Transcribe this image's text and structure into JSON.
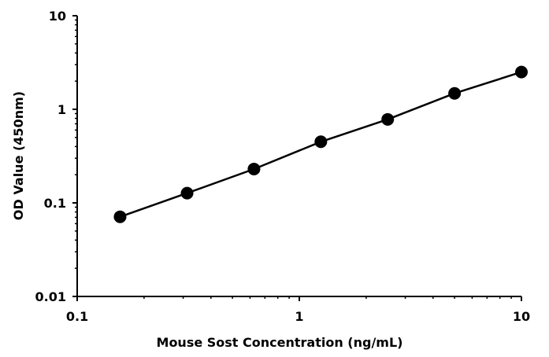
{
  "chart_data": {
    "type": "scatter",
    "title": "",
    "xlabel": "Mouse Sost Concentration (ng/mL)",
    "ylabel": "OD Value (450nm)",
    "x_scale": "log",
    "y_scale": "log",
    "xlim": [
      0.1,
      10
    ],
    "ylim": [
      0.01,
      10
    ],
    "x_ticks": [
      {
        "value": 0.1,
        "label": "0.1"
      },
      {
        "value": 1,
        "label": "1"
      },
      {
        "value": 10,
        "label": "10"
      }
    ],
    "y_ticks": [
      {
        "value": 0.01,
        "label": "0.01"
      },
      {
        "value": 0.1,
        "label": "0.1"
      },
      {
        "value": 1,
        "label": "1"
      },
      {
        "value": 10,
        "label": "10"
      }
    ],
    "grid": false,
    "legend": "none",
    "series": [
      {
        "x": [
          0.156,
          0.3125,
          0.625,
          1.25,
          2.5,
          5,
          10
        ],
        "y": [
          0.071,
          0.127,
          0.23,
          0.45,
          0.78,
          1.48,
          2.5
        ],
        "color": "#000000",
        "line": true,
        "marker": "circle"
      }
    ]
  }
}
